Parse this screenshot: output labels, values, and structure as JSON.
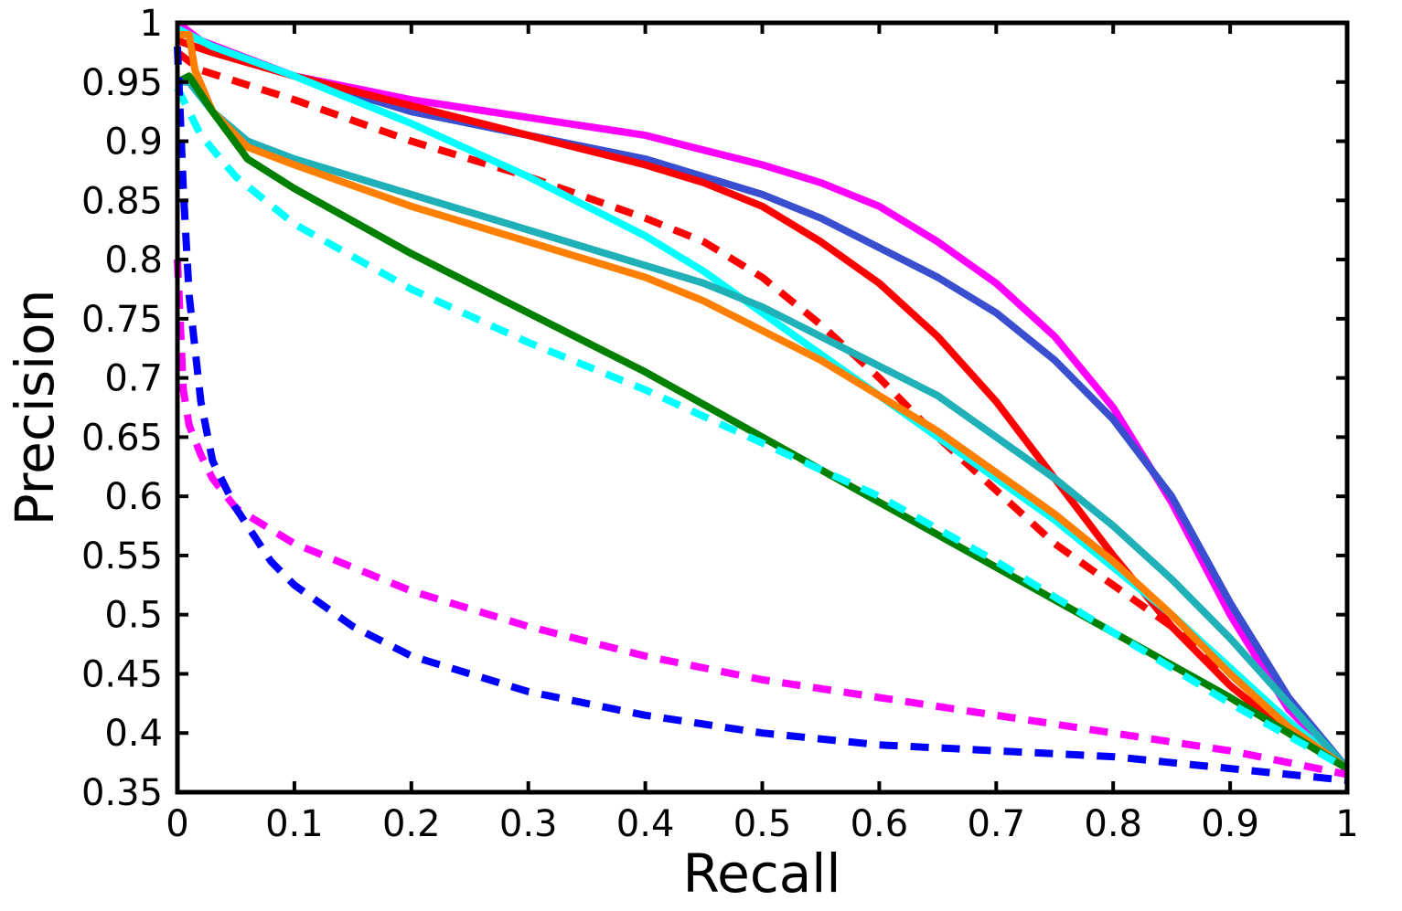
{
  "chart_data": {
    "type": "line",
    "title": "",
    "xlabel": "Recall",
    "ylabel": "Precision",
    "xlim": [
      0,
      1
    ],
    "ylim": [
      0.35,
      1
    ],
    "grid": false,
    "x_ticks": [
      "0",
      "0.1",
      "0.2",
      "0.3",
      "0.4",
      "0.5",
      "0.6",
      "0.7",
      "0.8",
      "0.9",
      "1"
    ],
    "y_ticks": [
      "0.35",
      "0.4",
      "0.45",
      "0.5",
      "0.55",
      "0.6",
      "0.65",
      "0.7",
      "0.75",
      "0.8",
      "0.85",
      "0.9",
      "0.95",
      "1"
    ],
    "series": [
      {
        "name": "magenta-solid",
        "color": "#ff00ff",
        "style": "solid",
        "x": [
          0,
          0.02,
          0.1,
          0.2,
          0.3,
          0.4,
          0.5,
          0.55,
          0.6,
          0.65,
          0.7,
          0.75,
          0.8,
          0.85,
          0.9,
          0.95,
          1
        ],
        "y": [
          1.0,
          0.985,
          0.955,
          0.935,
          0.92,
          0.905,
          0.88,
          0.865,
          0.845,
          0.815,
          0.78,
          0.735,
          0.675,
          0.595,
          0.5,
          0.42,
          0.37
        ]
      },
      {
        "name": "blue-solid",
        "color": "#3a4fcf",
        "style": "solid",
        "x": [
          0,
          0.03,
          0.1,
          0.2,
          0.3,
          0.4,
          0.5,
          0.55,
          0.6,
          0.65,
          0.7,
          0.75,
          0.8,
          0.85,
          0.9,
          0.95,
          1
        ],
        "y": [
          0.995,
          0.98,
          0.955,
          0.925,
          0.905,
          0.885,
          0.855,
          0.835,
          0.81,
          0.785,
          0.755,
          0.715,
          0.665,
          0.6,
          0.51,
          0.43,
          0.37
        ]
      },
      {
        "name": "red-solid",
        "color": "#ff0000",
        "style": "solid",
        "x": [
          0,
          0.03,
          0.1,
          0.2,
          0.3,
          0.4,
          0.45,
          0.5,
          0.55,
          0.6,
          0.65,
          0.7,
          0.75,
          0.8,
          0.85,
          0.9,
          0.95,
          1
        ],
        "y": [
          0.985,
          0.975,
          0.955,
          0.93,
          0.905,
          0.88,
          0.865,
          0.845,
          0.815,
          0.78,
          0.735,
          0.68,
          0.615,
          0.55,
          0.49,
          0.44,
          0.4,
          0.37
        ]
      },
      {
        "name": "red-dashed",
        "color": "#ff0000",
        "style": "dashed",
        "x": [
          0,
          0.02,
          0.1,
          0.2,
          0.3,
          0.4,
          0.45,
          0.5,
          0.55,
          0.6,
          0.65,
          0.7,
          0.75,
          0.8,
          0.85,
          0.9,
          0.95,
          1
        ],
        "y": [
          0.975,
          0.96,
          0.935,
          0.9,
          0.87,
          0.835,
          0.815,
          0.785,
          0.745,
          0.7,
          0.65,
          0.605,
          0.56,
          0.525,
          0.49,
          0.45,
          0.405,
          0.37
        ]
      },
      {
        "name": "cyan-solid",
        "color": "#00ffff",
        "style": "solid",
        "x": [
          0,
          0.03,
          0.1,
          0.2,
          0.3,
          0.4,
          0.45,
          0.5,
          0.55,
          0.6,
          0.65,
          0.7,
          0.75,
          0.8,
          0.85,
          0.9,
          0.95,
          1
        ],
        "y": [
          0.995,
          0.98,
          0.955,
          0.915,
          0.87,
          0.82,
          0.79,
          0.755,
          0.72,
          0.685,
          0.65,
          0.615,
          0.58,
          0.54,
          0.5,
          0.455,
          0.41,
          0.37
        ]
      },
      {
        "name": "teal-solid",
        "color": "#20b0b8",
        "style": "solid",
        "x": [
          0,
          0.01,
          0.03,
          0.06,
          0.1,
          0.2,
          0.3,
          0.4,
          0.45,
          0.5,
          0.55,
          0.6,
          0.65,
          0.7,
          0.75,
          0.8,
          0.85,
          0.9,
          0.95,
          1
        ],
        "y": [
          0.95,
          0.95,
          0.925,
          0.9,
          0.885,
          0.855,
          0.825,
          0.795,
          0.78,
          0.76,
          0.735,
          0.71,
          0.685,
          0.65,
          0.615,
          0.575,
          0.53,
          0.48,
          0.425,
          0.37
        ]
      },
      {
        "name": "orange-solid",
        "color": "#ff8000",
        "style": "solid",
        "x": [
          0,
          0.01,
          0.015,
          0.03,
          0.06,
          0.1,
          0.2,
          0.3,
          0.35,
          0.4,
          0.45,
          0.5,
          0.55,
          0.6,
          0.65,
          0.7,
          0.75,
          0.8,
          0.85,
          0.9,
          0.95,
          1
        ],
        "y": [
          0.99,
          0.99,
          0.96,
          0.925,
          0.895,
          0.88,
          0.845,
          0.815,
          0.8,
          0.785,
          0.765,
          0.74,
          0.715,
          0.685,
          0.655,
          0.62,
          0.585,
          0.545,
          0.5,
          0.45,
          0.405,
          0.37
        ]
      },
      {
        "name": "green-solid",
        "color": "#008000",
        "style": "solid",
        "x": [
          0,
          0.01,
          0.03,
          0.06,
          0.1,
          0.2,
          0.3,
          0.4,
          0.5,
          0.6,
          0.7,
          0.8,
          0.9,
          1
        ],
        "y": [
          0.95,
          0.955,
          0.925,
          0.885,
          0.86,
          0.805,
          0.755,
          0.705,
          0.65,
          0.595,
          0.54,
          0.485,
          0.43,
          0.37
        ]
      },
      {
        "name": "cyan-dashed",
        "color": "#00ffff",
        "style": "dashed",
        "x": [
          0,
          0.01,
          0.02,
          0.05,
          0.1,
          0.2,
          0.3,
          0.4,
          0.5,
          0.6,
          0.7,
          0.8,
          0.9,
          1
        ],
        "y": [
          0.945,
          0.925,
          0.905,
          0.87,
          0.83,
          0.775,
          0.73,
          0.69,
          0.645,
          0.6,
          0.545,
          0.485,
          0.425,
          0.37
        ]
      },
      {
        "name": "magenta-dashed",
        "color": "#ff00ff",
        "style": "dashed",
        "x": [
          0,
          0.005,
          0.01,
          0.02,
          0.03,
          0.05,
          0.1,
          0.2,
          0.3,
          0.4,
          0.5,
          0.6,
          0.7,
          0.8,
          0.9,
          1
        ],
        "y": [
          0.8,
          0.69,
          0.66,
          0.635,
          0.615,
          0.59,
          0.56,
          0.52,
          0.49,
          0.465,
          0.445,
          0.43,
          0.415,
          0.4,
          0.385,
          0.365
        ]
      },
      {
        "name": "blue-dashed",
        "color": "#0000ff",
        "style": "dashed",
        "x": [
          0,
          0.005,
          0.01,
          0.02,
          0.03,
          0.05,
          0.08,
          0.1,
          0.15,
          0.2,
          0.3,
          0.4,
          0.5,
          0.6,
          0.7,
          0.8,
          0.9,
          1
        ],
        "y": [
          0.98,
          0.86,
          0.77,
          0.68,
          0.63,
          0.59,
          0.545,
          0.525,
          0.49,
          0.465,
          0.435,
          0.415,
          0.4,
          0.39,
          0.385,
          0.38,
          0.37,
          0.36
        ]
      }
    ]
  }
}
